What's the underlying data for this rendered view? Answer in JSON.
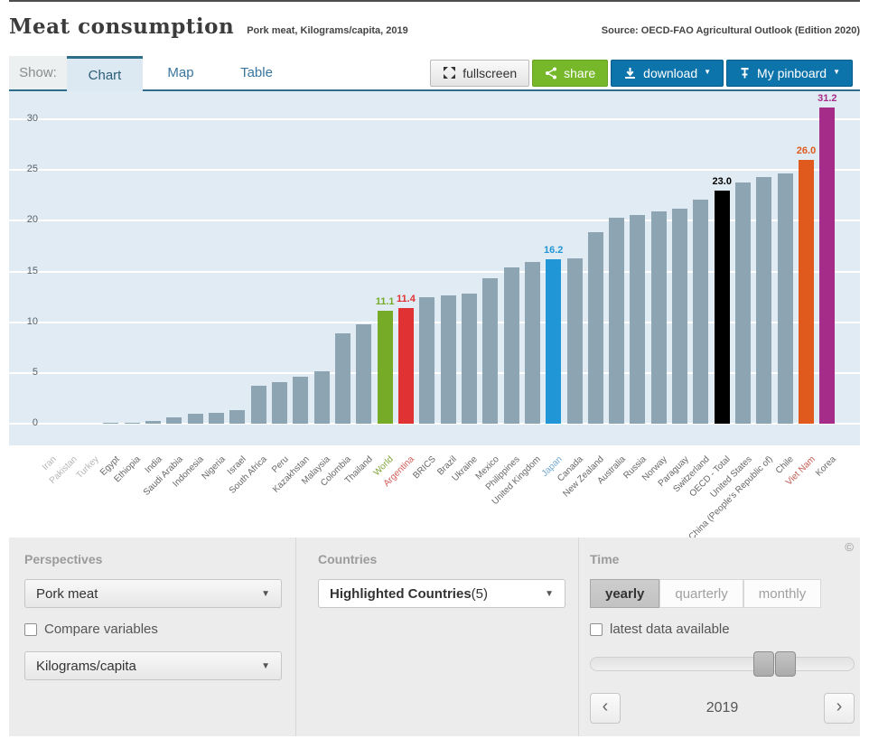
{
  "header": {
    "title": "Meat consumption",
    "subtitle": "Pork meat, Kilograms/capita, 2019",
    "source": "Source: OECD-FAO Agricultural Outlook (Edition 2020)"
  },
  "toolbar": {
    "show_label": "Show:",
    "tabs": [
      {
        "label": "Chart",
        "active": true
      },
      {
        "label": "Map",
        "active": false
      },
      {
        "label": "Table",
        "active": false
      }
    ],
    "fullscreen_label": "fullscreen",
    "share_label": "share",
    "download_label": "download",
    "pinboard_label": "My pinboard",
    "caret": "▼"
  },
  "chart_data": {
    "type": "bar",
    "title": "Meat consumption",
    "subtitle": "Pork meat, Kilograms/capita, 2019",
    "ylabel": "Kilograms/capita",
    "ylim": [
      0,
      32.5
    ],
    "yticks": [
      0,
      5,
      10,
      15,
      20,
      25,
      30
    ],
    "grid": true,
    "legend_position": "none",
    "plot_background": "#e0ebf3",
    "gridline_color": "#ffffff",
    "default_bar_color": "#8da4b3",
    "default_label_color": "#666666",
    "bars": [
      {
        "name": "Iran",
        "value": 0,
        "label_color": "#b5b5b5"
      },
      {
        "name": "Pakistan",
        "value": 0,
        "label_color": "#b5b5b5"
      },
      {
        "name": "Turkey",
        "value": 0,
        "label_color": "#b5b5b5"
      },
      {
        "name": "Egypt",
        "value": 0.05
      },
      {
        "name": "Ethiopia",
        "value": 0.1
      },
      {
        "name": "India",
        "value": 0.3
      },
      {
        "name": "Saudi Arabia",
        "value": 0.6
      },
      {
        "name": "Indonesia",
        "value": 1.0
      },
      {
        "name": "Nigeria",
        "value": 1.1
      },
      {
        "name": "Israel",
        "value": 1.3
      },
      {
        "name": "South Africa",
        "value": 3.7
      },
      {
        "name": "Peru",
        "value": 4.1
      },
      {
        "name": "Kazakhstan",
        "value": 4.6
      },
      {
        "name": "Malaysia",
        "value": 5.2
      },
      {
        "name": "Colombia",
        "value": 8.9
      },
      {
        "name": "Thailand",
        "value": 9.8
      },
      {
        "name": "World",
        "value": 11.1,
        "color": "#76ab28",
        "label_color": "#7fa43c",
        "value_label": "11.1"
      },
      {
        "name": "Argentina",
        "value": 11.4,
        "color": "#e03232",
        "label_color": "#cf5a55",
        "value_label": "11.4"
      },
      {
        "name": "BRICS",
        "value": 12.5
      },
      {
        "name": "Brazil",
        "value": 12.6
      },
      {
        "name": "Ukraine",
        "value": 12.8
      },
      {
        "name": "Mexico",
        "value": 14.3
      },
      {
        "name": "Philippines",
        "value": 15.4
      },
      {
        "name": "United Kingdom",
        "value": 15.9
      },
      {
        "name": "Japan",
        "value": 16.2,
        "color": "#2196d6",
        "label_color": "#6fa8d2",
        "value_label": "16.2"
      },
      {
        "name": "Canada",
        "value": 16.3
      },
      {
        "name": "New Zealand",
        "value": 18.9
      },
      {
        "name": "Australia",
        "value": 20.3
      },
      {
        "name": "Russia",
        "value": 20.6
      },
      {
        "name": "Norway",
        "value": 20.9
      },
      {
        "name": "Paraguay",
        "value": 21.2
      },
      {
        "name": "Switzerland",
        "value": 22.1
      },
      {
        "name": "OECD - Total",
        "value": 23.0,
        "color": "#000000",
        "value_label": "23.0"
      },
      {
        "name": "United States",
        "value": 23.8
      },
      {
        "name": "China (People's Republic of)",
        "value": 24.3
      },
      {
        "name": "Chile",
        "value": 24.7
      },
      {
        "name": "Viet Nam",
        "value": 26.0,
        "color": "#e05a1e",
        "label_color": "#c05a50",
        "value_label": "26.0"
      },
      {
        "name": "Korea",
        "value": 31.2,
        "color": "#a62c8a",
        "value_label": "31.2"
      }
    ]
  },
  "panels": {
    "perspectives": {
      "header": "Perspectives",
      "variable_select": "Pork meat",
      "compare_label": "Compare variables",
      "unit_select": "Kilograms/capita",
      "caret": "▼"
    },
    "countries": {
      "header": "Countries",
      "select_label": "Highlighted Countries",
      "select_count": " (5)",
      "caret": "▼"
    },
    "time": {
      "header": "Time",
      "options": [
        "yearly",
        "quarterly",
        "monthly"
      ],
      "active_option": "yearly",
      "latest_label": "latest data available",
      "year": "2019",
      "prev": "‹",
      "next": "›",
      "copyright": "©"
    }
  }
}
